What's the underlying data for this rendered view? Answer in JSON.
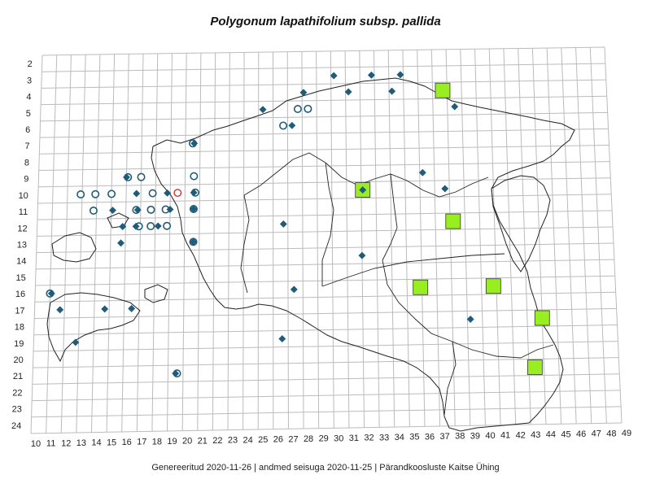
{
  "title": "Polygonum lapathifolium subsp. pallida",
  "footer": "Genereeritud 2020-11-26  |  andmed seisuga 2020-11-25  |  Pärandkoosluste Kaitse Ühing",
  "grid": {
    "row_labels": [
      "2",
      "3",
      "4",
      "5",
      "6",
      "7",
      "8",
      "9",
      "10",
      "11",
      "12",
      "13",
      "14",
      "15",
      "16",
      "17",
      "18",
      "19",
      "20",
      "21",
      "22",
      "23",
      "24"
    ],
    "col_labels": [
      "10",
      "11",
      "12",
      "13",
      "14",
      "15",
      "16",
      "17",
      "18",
      "19",
      "20",
      "21",
      "22",
      "23",
      "24",
      "25",
      "26",
      "27",
      "28",
      "29",
      "30",
      "31",
      "32",
      "33",
      "34",
      "35",
      "36",
      "37",
      "38",
      "39",
      "40",
      "41",
      "42",
      "43",
      "44",
      "45",
      "46",
      "47",
      "48",
      "49"
    ]
  },
  "colors": {
    "diamond": "#1f5c7a",
    "circle": "#1f5c7a",
    "square_fill": "#99ee22",
    "red_marker": "#d62b2b",
    "grid": "#bbbbbb",
    "border": "#222222"
  },
  "markers": {
    "diamonds": [
      [
        29.7,
        3
      ],
      [
        32.3,
        3
      ],
      [
        34.3,
        3
      ],
      [
        27.6,
        4
      ],
      [
        30.7,
        4
      ],
      [
        33.7,
        4
      ],
      [
        38.0,
        5
      ],
      [
        24.8,
        5
      ],
      [
        26.8,
        6
      ],
      [
        20.1,
        7
      ],
      [
        15.5,
        9
      ],
      [
        35.7,
        9
      ],
      [
        37.2,
        10
      ],
      [
        31.6,
        10
      ],
      [
        16.2,
        10
      ],
      [
        18.3,
        10
      ],
      [
        20.1,
        10
      ],
      [
        14.6,
        11
      ],
      [
        16.3,
        11
      ],
      [
        18.5,
        11
      ],
      [
        20.1,
        11
      ],
      [
        15.3,
        12
      ],
      [
        16.2,
        12
      ],
      [
        17.7,
        12
      ],
      [
        26.2,
        12
      ],
      [
        15.2,
        13
      ],
      [
        20.1,
        13
      ],
      [
        31.5,
        14
      ],
      [
        10.6,
        16
      ],
      [
        26.9,
        16
      ],
      [
        11.2,
        17
      ],
      [
        14.2,
        17
      ],
      [
        16.0,
        17
      ],
      [
        38.7,
        18
      ],
      [
        12.3,
        19
      ],
      [
        26.1,
        19
      ],
      [
        19.0,
        21
      ]
    ],
    "circles": [
      [
        26.2,
        6
      ],
      [
        27.2,
        5
      ],
      [
        27.9,
        5
      ],
      [
        20.0,
        7
      ],
      [
        15.6,
        9
      ],
      [
        16.5,
        9
      ],
      [
        20.1,
        9
      ],
      [
        12.4,
        10
      ],
      [
        13.4,
        10
      ],
      [
        14.5,
        10
      ],
      [
        17.3,
        10
      ],
      [
        20.2,
        10
      ],
      [
        13.3,
        11
      ],
      [
        16.2,
        11
      ],
      [
        17.2,
        11
      ],
      [
        18.2,
        11
      ],
      [
        20.1,
        11
      ],
      [
        16.4,
        12
      ],
      [
        17.2,
        12
      ],
      [
        18.3,
        12
      ],
      [
        20.1,
        13
      ],
      [
        10.5,
        16
      ],
      [
        19.1,
        21
      ]
    ],
    "squares": [
      [
        37.2,
        4
      ],
      [
        31.6,
        10
      ],
      [
        37.7,
        12
      ],
      [
        35.4,
        16
      ],
      [
        40.3,
        16
      ],
      [
        43.5,
        18
      ],
      [
        42.9,
        21
      ]
    ],
    "red": [
      [
        19.0,
        10
      ]
    ]
  }
}
